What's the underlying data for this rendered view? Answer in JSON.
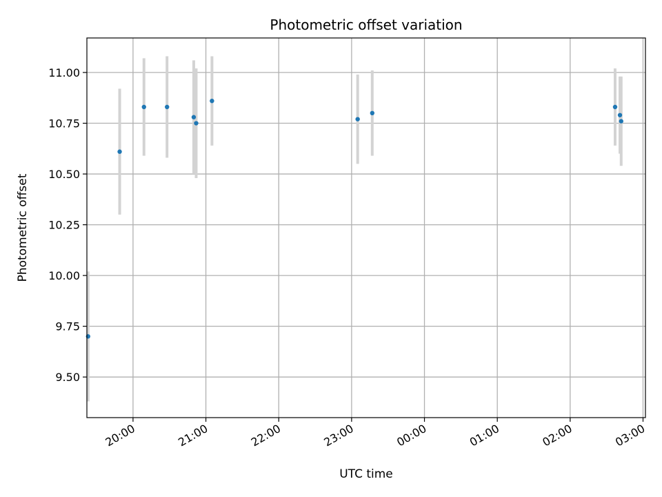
{
  "chart_data": {
    "type": "scatter",
    "title": "Photometric offset variation",
    "xlabel": "UTC time",
    "ylabel": "Photometric offset",
    "x_axis_type": "time",
    "x_tick_labels": [
      "20:00",
      "21:00",
      "22:00",
      "23:00",
      "00:00",
      "01:00",
      "02:00",
      "03:00"
    ],
    "xlim": [
      "19:22",
      "03:02"
    ],
    "ylim": [
      9.3,
      11.17
    ],
    "y_ticks": [
      9.5,
      9.75,
      10.0,
      10.25,
      10.5,
      10.75,
      11.0
    ],
    "y_tick_labels": [
      "9.50",
      "9.75",
      "10.00",
      "10.25",
      "10.50",
      "10.75",
      "11.00"
    ],
    "grid": true,
    "legend": false,
    "marker_color": "#1f77b4",
    "errorbar_color": "#d3d3d3",
    "points": [
      {
        "x": "19:23",
        "y": 9.7,
        "yerr": 0.32
      },
      {
        "x": "19:49",
        "y": 10.61,
        "yerr": 0.31
      },
      {
        "x": "20:09",
        "y": 10.83,
        "yerr": 0.24
      },
      {
        "x": "20:28",
        "y": 10.83,
        "yerr": 0.25
      },
      {
        "x": "20:50",
        "y": 10.78,
        "yerr": 0.28
      },
      {
        "x": "20:52",
        "y": 10.75,
        "yerr": 0.27
      },
      {
        "x": "21:05",
        "y": 10.86,
        "yerr": 0.22
      },
      {
        "x": "23:05",
        "y": 10.77,
        "yerr": 0.22
      },
      {
        "x": "23:17",
        "y": 10.8,
        "yerr": 0.21
      },
      {
        "x": "02:37",
        "y": 10.83,
        "yerr": 0.19
      },
      {
        "x": "02:41",
        "y": 10.79,
        "yerr": 0.19
      },
      {
        "x": "02:42",
        "y": 10.76,
        "yerr": 0.22
      }
    ]
  }
}
